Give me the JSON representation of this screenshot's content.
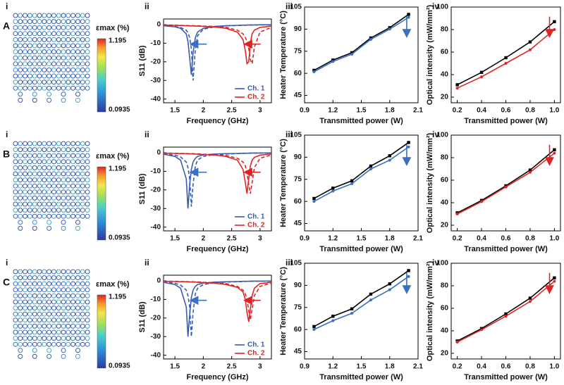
{
  "rows": [
    {
      "label": "A",
      "panel": "i",
      "colorbar": {
        "title": "εmax (%)",
        "max": 1.195,
        "min": 0.0935
      }
    },
    {
      "label": "B",
      "panel": "i",
      "colorbar": {
        "title": "εmax (%)",
        "max": 1.195,
        "min": 0.0935
      }
    },
    {
      "label": "C",
      "panel": "i",
      "colorbar": {
        "title": "εmax (%)",
        "max": 1.195,
        "min": 0.0935
      }
    }
  ],
  "chart_data": [
    {
      "type": "line",
      "panel": "ii",
      "xlabel": "Frequency (GHz)",
      "ylabel": "S11 (dB)",
      "x": [
        1.3,
        1.5,
        1.6,
        1.7,
        1.73,
        1.76,
        1.79,
        1.82,
        1.86,
        1.9,
        2.0,
        2.2,
        2.4,
        2.6,
        2.7,
        2.74,
        2.77,
        2.8,
        2.83,
        2.86,
        2.9,
        3.0,
        3.2
      ],
      "xlim": [
        1.3,
        3.2
      ],
      "xticks": [
        1.5,
        2,
        2.5,
        3
      ],
      "ylim": [
        -42,
        3
      ],
      "yticks": [
        0,
        -10,
        -20,
        -30,
        -40
      ],
      "legend": "lower right",
      "series": [
        {
          "name": "Ch. 1",
          "color": "#3a5bb0",
          "dash": false,
          "values": [
            -0.6,
            -1.2,
            -2,
            -5,
            -9,
            -18,
            -27,
            -15,
            -7,
            -4,
            -2,
            -1,
            -0.6,
            -0.4,
            -0.3,
            -0.3,
            -0.3,
            -0.2,
            -0.2,
            -0.2,
            -0.2,
            -0.1,
            -0.1
          ]
        },
        {
          "color": "#3a5bb0",
          "dash": true,
          "values": [
            -0.5,
            -1,
            -1.6,
            -3,
            -4.5,
            -7,
            -13,
            -30,
            -13,
            -6,
            -2.5,
            -1.2,
            -0.7,
            -0.5,
            -0.4,
            -0.4,
            -0.3,
            -0.3,
            -0.3,
            -0.3,
            -0.2,
            -0.2,
            -0.2
          ]
        },
        {
          "name": "Ch. 2",
          "color": "#e02424",
          "dash": false,
          "values": [
            -0.3,
            -0.4,
            -0.5,
            -0.6,
            -0.6,
            -0.7,
            -0.7,
            -0.7,
            -0.8,
            -0.8,
            -1,
            -1.3,
            -2,
            -4,
            -8,
            -14,
            -21,
            -20,
            -10,
            -5,
            -3,
            -1.5,
            -0.8
          ]
        },
        {
          "color": "#e02424",
          "dash": true,
          "values": [
            -0.2,
            -0.3,
            -0.4,
            -0.5,
            -0.5,
            -0.5,
            -0.5,
            -0.6,
            -0.6,
            -0.6,
            -0.8,
            -1,
            -1.5,
            -3,
            -5,
            -7,
            -9,
            -13,
            -19,
            -21,
            -12,
            -4,
            -1.5
          ]
        }
      ]
    },
    {
      "type": "line",
      "panel": "iii",
      "xlabel": "Transmitted power (W)",
      "ylabel": "Heater Temperature (°C)",
      "x": [
        1.0,
        1.2,
        1.4,
        1.6,
        1.8,
        2.0
      ],
      "xlim": [
        0.9,
        2.1
      ],
      "xticks": [
        0.9,
        1.2,
        1.5,
        1.8,
        2.1
      ],
      "ylim": [
        40,
        105
      ],
      "yticks": [
        45,
        60,
        75,
        90,
        105
      ],
      "series": [
        {
          "color": "#000000",
          "marker": "square",
          "values": [
            62,
            69,
            74,
            84,
            91,
            100
          ]
        },
        {
          "color": "#3a6fc4",
          "marker": "circle",
          "values": [
            61,
            68,
            73,
            83,
            90,
            98
          ]
        }
      ]
    },
    {
      "type": "line",
      "panel": "iv",
      "xlabel": "Transmitted power (W)",
      "ylabel": "Optical intensity (mW/mm²)",
      "x": [
        0.2,
        0.4,
        0.6,
        0.8,
        1.0
      ],
      "xlim": [
        0.15,
        1.05
      ],
      "xticks": [
        0.2,
        0.4,
        0.6,
        0.8,
        {
          "value": 1,
          "label": "1.0"
        }
      ],
      "ylim": [
        15,
        100
      ],
      "yticks": [
        20,
        40,
        60,
        80,
        100
      ],
      "series": [
        {
          "color": "#000000",
          "marker": "square",
          "values": [
            31,
            42,
            55,
            69,
            87
          ]
        },
        {
          "color": "#e02424",
          "marker": "circle",
          "values": [
            28,
            38,
            50,
            62,
            80
          ]
        }
      ]
    },
    {
      "type": "line",
      "panel": "ii",
      "xlabel": "Frequency (GHz)",
      "ylabel": "S11 (dB)",
      "x": [
        1.3,
        1.5,
        1.6,
        1.7,
        1.73,
        1.76,
        1.79,
        1.82,
        1.86,
        1.9,
        2.0,
        2.2,
        2.4,
        2.6,
        2.7,
        2.74,
        2.77,
        2.8,
        2.83,
        2.86,
        2.9,
        3.0,
        3.2
      ],
      "xlim": [
        1.3,
        3.2
      ],
      "xticks": [
        1.5,
        2,
        2.5,
        3
      ],
      "ylim": [
        -42,
        3
      ],
      "yticks": [
        0,
        -10,
        -20,
        -30,
        -40
      ],
      "legend": "lower right",
      "series": [
        {
          "name": "Ch. 1",
          "color": "#3a5bb0",
          "dash": false,
          "values": [
            -0.8,
            -2,
            -4,
            -14,
            -30,
            -17,
            -9,
            -5,
            -3,
            -2,
            -1.2,
            -0.7,
            -0.5,
            -0.4,
            -0.3,
            -0.3,
            -0.3,
            -0.3,
            -0.2,
            -0.2,
            -0.2,
            -0.2,
            -0.1
          ]
        },
        {
          "color": "#3a5bb0",
          "dash": true,
          "values": [
            -0.6,
            -1.3,
            -2.3,
            -5,
            -8,
            -14,
            -29,
            -17,
            -7,
            -4,
            -2,
            -1,
            -0.7,
            -0.5,
            -0.4,
            -0.4,
            -0.3,
            -0.3,
            -0.3,
            -0.3,
            -0.2,
            -0.2,
            -0.2
          ]
        },
        {
          "name": "Ch. 2",
          "color": "#e02424",
          "dash": false,
          "values": [
            -0.3,
            -0.4,
            -0.5,
            -0.5,
            -0.6,
            -0.6,
            -0.6,
            -0.7,
            -0.7,
            -0.8,
            -1,
            -1.3,
            -2,
            -4,
            -9,
            -16,
            -22,
            -14,
            -7,
            -4,
            -2.5,
            -1.3,
            -0.7
          ]
        },
        {
          "color": "#e02424",
          "dash": true,
          "values": [
            -0.2,
            -0.3,
            -0.4,
            -0.4,
            -0.5,
            -0.5,
            -0.5,
            -0.5,
            -0.6,
            -0.6,
            -0.8,
            -1,
            -1.5,
            -3,
            -5,
            -7,
            -11,
            -17,
            -22,
            -16,
            -8,
            -3,
            -1.2
          ]
        }
      ]
    },
    {
      "type": "line",
      "panel": "iii",
      "xlabel": "Transmitted power (W)",
      "ylabel": "Heater Temperature (°C)",
      "x": [
        1.0,
        1.2,
        1.4,
        1.6,
        1.8,
        2.0
      ],
      "xlim": [
        0.9,
        2.1
      ],
      "xticks": [
        0.9,
        1.2,
        1.5,
        1.8,
        2.1
      ],
      "ylim": [
        40,
        105
      ],
      "yticks": [
        45,
        60,
        75,
        90,
        105
      ],
      "series": [
        {
          "color": "#000000",
          "marker": "square",
          "values": [
            62,
            69,
            74,
            84,
            91,
            100
          ]
        },
        {
          "color": "#3a6fc4",
          "marker": "circle",
          "values": [
            60,
            67,
            72,
            82,
            88,
            97
          ]
        }
      ]
    },
    {
      "type": "line",
      "panel": "iv",
      "xlabel": "Transmitted power (W)",
      "ylabel": "Optical intensity (mW/mm²)",
      "x": [
        0.2,
        0.4,
        0.6,
        0.8,
        1.0
      ],
      "xlim": [
        0.15,
        1.05
      ],
      "xticks": [
        0.2,
        0.4,
        0.6,
        0.8,
        {
          "value": 1,
          "label": "1.0"
        }
      ],
      "ylim": [
        15,
        100
      ],
      "yticks": [
        20,
        40,
        60,
        80,
        100
      ],
      "series": [
        {
          "color": "#000000",
          "marker": "square",
          "values": [
            31,
            42,
            55,
            69,
            87
          ]
        },
        {
          "color": "#e02424",
          "marker": "circle",
          "values": [
            30,
            41,
            54,
            67,
            84
          ]
        }
      ]
    },
    {
      "type": "line",
      "panel": "ii",
      "xlabel": "Frequency (GHz)",
      "ylabel": "S11 (dB)",
      "x": [
        1.3,
        1.5,
        1.6,
        1.7,
        1.73,
        1.76,
        1.79,
        1.82,
        1.86,
        1.9,
        2.0,
        2.2,
        2.4,
        2.6,
        2.7,
        2.74,
        2.77,
        2.8,
        2.83,
        2.86,
        2.9,
        3.0,
        3.2
      ],
      "xlim": [
        1.3,
        3.2
      ],
      "xticks": [
        1.5,
        2,
        2.5,
        3
      ],
      "ylim": [
        -42,
        3
      ],
      "yticks": [
        0,
        -10,
        -20,
        -30,
        -40
      ],
      "legend": "lower right",
      "series": [
        {
          "name": "Ch. 1",
          "color": "#3a5bb0",
          "dash": false,
          "values": [
            -0.8,
            -2,
            -4,
            -14,
            -30,
            -18,
            -9,
            -5,
            -3,
            -2,
            -1.2,
            -0.7,
            -0.5,
            -0.4,
            -0.3,
            -0.3,
            -0.3,
            -0.3,
            -0.2,
            -0.2,
            -0.2,
            -0.2,
            -0.1
          ]
        },
        {
          "color": "#3a5bb0",
          "dash": true,
          "values": [
            -0.6,
            -1.3,
            -2.3,
            -5,
            -8,
            -14,
            -30,
            -17,
            -7,
            -4,
            -2,
            -1,
            -0.7,
            -0.5,
            -0.4,
            -0.4,
            -0.3,
            -0.3,
            -0.3,
            -0.3,
            -0.2,
            -0.2,
            -0.2
          ]
        },
        {
          "name": "Ch. 2",
          "color": "#e02424",
          "dash": false,
          "values": [
            -0.3,
            -0.4,
            -0.5,
            -0.5,
            -0.6,
            -0.6,
            -0.6,
            -0.7,
            -0.7,
            -0.8,
            -1,
            -1.3,
            -2,
            -3.5,
            -6,
            -10,
            -17,
            -22,
            -15,
            -8,
            -4,
            -1.5,
            -0.8
          ]
        },
        {
          "color": "#e02424",
          "dash": true,
          "values": [
            -0.2,
            -0.3,
            -0.4,
            -0.4,
            -0.5,
            -0.5,
            -0.5,
            -0.5,
            -0.6,
            -0.6,
            -0.8,
            -1,
            -1.5,
            -3,
            -5,
            -7,
            -10,
            -16,
            -21,
            -15,
            -8,
            -3,
            -1.2
          ]
        }
      ]
    },
    {
      "type": "line",
      "panel": "iii",
      "xlabel": "Transmitted power (W)",
      "ylabel": "Heater Temperature (°C)",
      "x": [
        1.0,
        1.2,
        1.4,
        1.6,
        1.8,
        2.0
      ],
      "xlim": [
        0.9,
        2.1
      ],
      "xticks": [
        0.9,
        1.2,
        1.5,
        1.8,
        2.1
      ],
      "ylim": [
        40,
        105
      ],
      "yticks": [
        45,
        60,
        75,
        90,
        105
      ],
      "series": [
        {
          "color": "#000000",
          "marker": "square",
          "values": [
            62,
            69,
            74,
            84,
            91,
            100
          ]
        },
        {
          "color": "#3a6fc4",
          "marker": "circle",
          "values": [
            60,
            66,
            71,
            80,
            87,
            96
          ]
        }
      ]
    },
    {
      "type": "line",
      "panel": "iv",
      "xlabel": "Transmitted power (W)",
      "ylabel": "Optical intensity (mW/mm²)",
      "x": [
        0.2,
        0.4,
        0.6,
        0.8,
        1.0
      ],
      "xlim": [
        0.15,
        1.05
      ],
      "xticks": [
        0.2,
        0.4,
        0.6,
        0.8,
        {
          "value": 1,
          "label": "1.0"
        }
      ],
      "ylim": [
        15,
        100
      ],
      "yticks": [
        20,
        40,
        60,
        80,
        100
      ],
      "series": [
        {
          "color": "#000000",
          "marker": "square",
          "values": [
            31,
            42,
            55,
            69,
            87
          ]
        },
        {
          "color": "#e02424",
          "marker": "circle",
          "values": [
            30,
            41,
            53,
            66,
            84
          ]
        }
      ]
    }
  ]
}
